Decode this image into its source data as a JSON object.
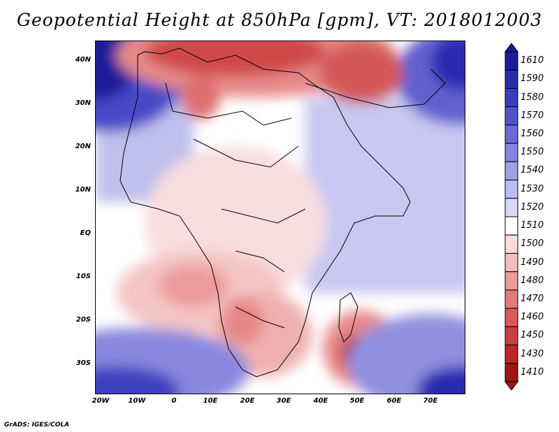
{
  "title": "Geopotential Height at 850hPa [gpm], VT: 2018012003",
  "footer": "GrADS: IGES/COLA",
  "map": {
    "lat_labels": [
      "40N",
      "30N",
      "20N",
      "10N",
      "EQ",
      "10S",
      "20S",
      "30S"
    ],
    "lon_labels": [
      "20W",
      "10W",
      "0",
      "10E",
      "20E",
      "30E",
      "40E",
      "50E",
      "60E",
      "70E"
    ]
  },
  "colorbar": {
    "levels": [
      "1610",
      "1590",
      "1580",
      "1570",
      "1560",
      "1550",
      "1540",
      "1530",
      "1520",
      "1510",
      "1500",
      "1490",
      "1480",
      "1470",
      "1460",
      "1450",
      "1430",
      "1410"
    ],
    "colors": [
      "#1c1c9a",
      "#2a2ab0",
      "#3c3cc0",
      "#5252cc",
      "#6a6ad6",
      "#8484e0",
      "#a0a0e8",
      "#bcbcf0",
      "#d8d8f8",
      "#ffffff",
      "#fadcdc",
      "#f4bcbc",
      "#ec9a9a",
      "#e27a7a",
      "#d85a5a",
      "#cc3c3c",
      "#bc2626",
      "#a01414"
    ]
  }
}
